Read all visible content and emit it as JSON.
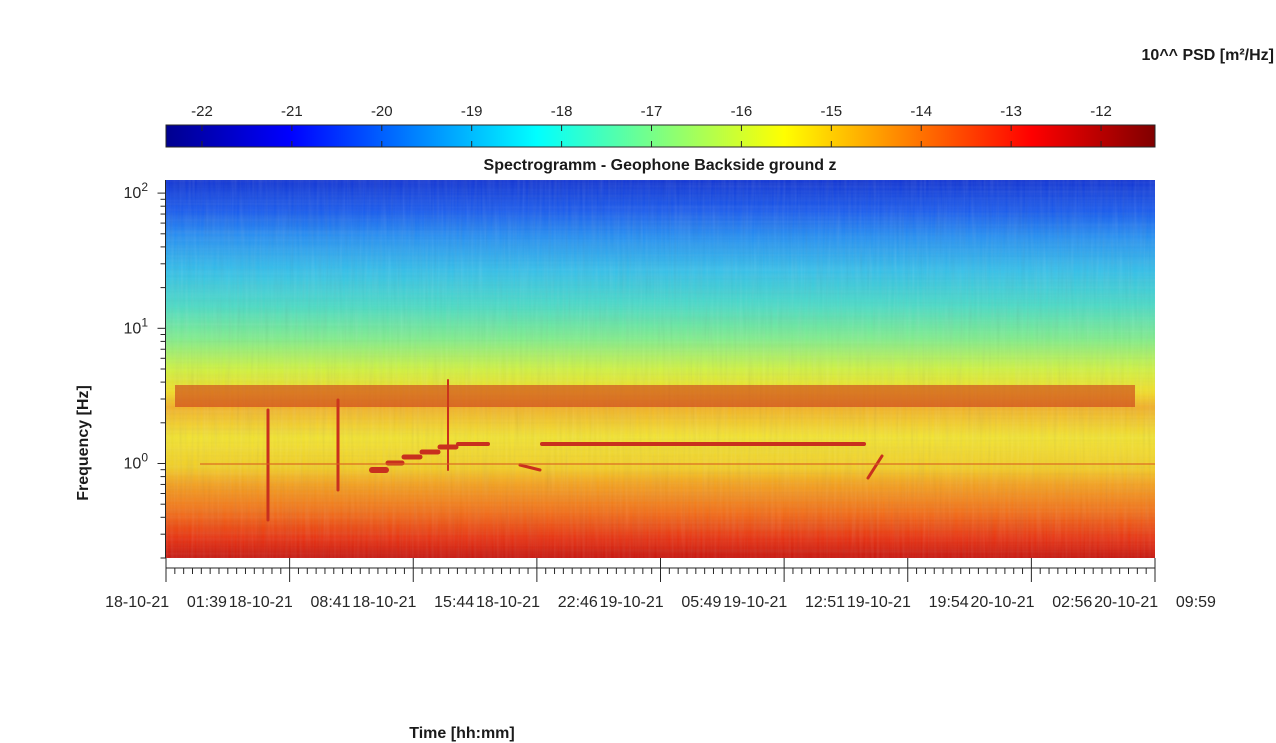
{
  "chart_data": {
    "type": "heatmap",
    "title": "Spectrogramm - Geophone Backside ground z",
    "xlabel": "Time [hh:mm]",
    "ylabel": "Frequency [Hz]",
    "yscale": "log",
    "ylim": [
      0.2,
      125
    ],
    "y_ticks": [
      {
        "base": "10",
        "exp": "0",
        "value": 1
      },
      {
        "base": "10",
        "exp": "1",
        "value": 10
      },
      {
        "base": "10",
        "exp": "2",
        "value": 100
      }
    ],
    "x_tick_labels": [
      "18-10-21  01:39",
      "18-10-21  08:41",
      "18-10-21  15:44",
      "18-10-21  22:46",
      "19-10-21  05:49",
      "19-10-21  12:51",
      "19-10-21  19:54",
      "20-10-21  02:56",
      "20-10-21  09:59"
    ],
    "colorbar": {
      "label": "10^^ PSD [m²/Hz]",
      "ticks": [
        "-22",
        "-21",
        "-20",
        "-19",
        "-18",
        "-17",
        "-16",
        "-15",
        "-14",
        "-13",
        "-12"
      ],
      "range": [
        -22.4,
        -11.4
      ],
      "colormap": "jet"
    },
    "grid": false
  }
}
